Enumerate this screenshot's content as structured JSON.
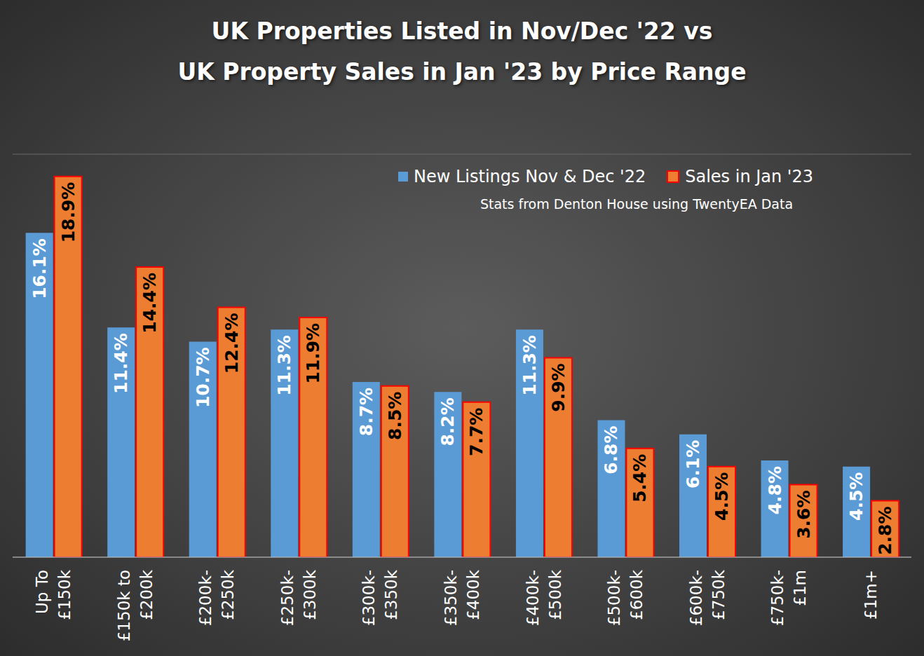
{
  "chart_data": {
    "type": "bar",
    "title": "UK Properties Listed in Nov/Dec '22 vs\nUK Property Sales in Jan '23 by Price Range",
    "subtitle": "Stats from Denton House using TwentyEA Data",
    "categories": [
      "Up To £150k",
      "£150k to £200k",
      "£200k-£250k",
      "£250k-£300k",
      "£300k-£350k",
      "£350k-£400k",
      "£400k-£500k",
      "£500k-£600k",
      "£600k-£750k",
      "£750k-£1m",
      "£1m+"
    ],
    "series": [
      {
        "name": "New Listings Nov & Dec '22",
        "color": "#5b9bd5",
        "values": [
          16.1,
          11.4,
          10.7,
          11.3,
          8.7,
          8.2,
          11.3,
          6.8,
          6.1,
          4.8,
          4.5
        ],
        "value_labels": [
          "16.1%",
          "11.4%",
          "10.7%",
          "11.3%",
          "8.7%",
          "8.2%",
          "11.3%",
          "6.8%",
          "6.1%",
          "4.8%",
          "4.5%"
        ]
      },
      {
        "name": "Sales in Jan '23",
        "color": "#ed7d31",
        "values": [
          18.9,
          14.4,
          12.4,
          11.9,
          8.5,
          7.7,
          9.9,
          5.4,
          4.5,
          3.6,
          2.8
        ],
        "value_labels": [
          "18.9%",
          "14.4%",
          "12.4%",
          "11.9%",
          "8.5%",
          "7.7%",
          "9.9%",
          "5.4%",
          "4.5%",
          "3.6%",
          "2.8%"
        ]
      }
    ],
    "ylim": [
      0,
      20
    ],
    "yticks": [
      0,
      2,
      4,
      6,
      8,
      10,
      12,
      14,
      16,
      18,
      20
    ],
    "grid": true,
    "legend": "upper right",
    "data_labels": true,
    "tick_labels": "x"
  }
}
